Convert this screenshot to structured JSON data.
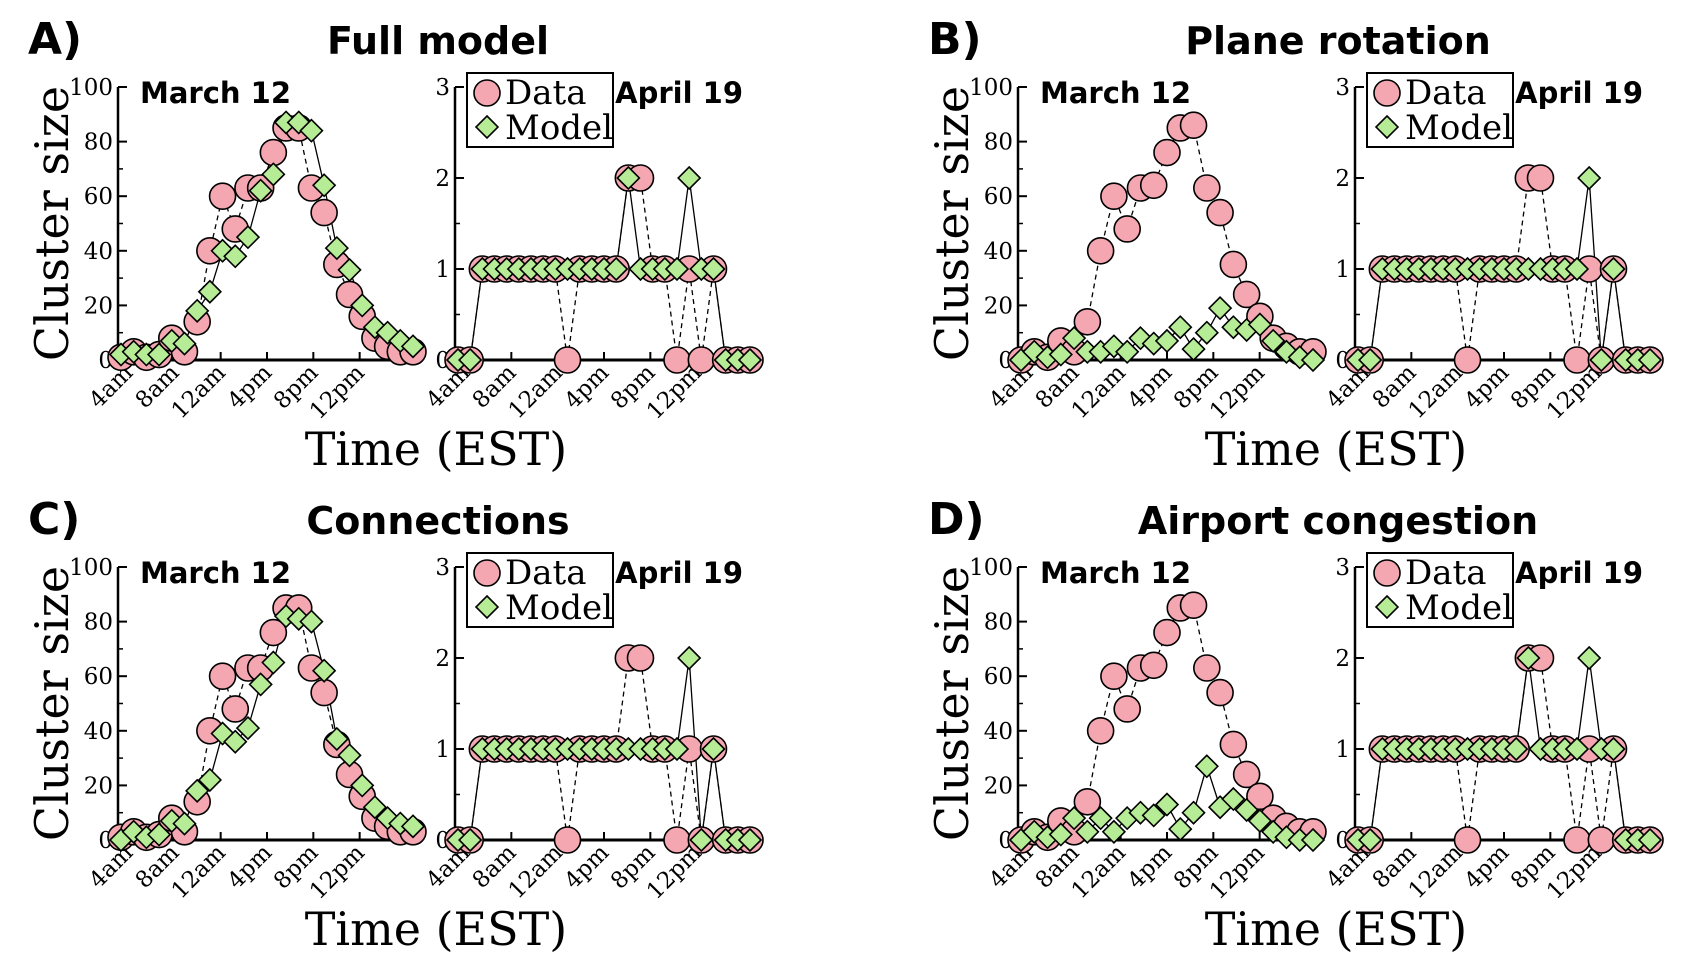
{
  "ylabel": "Cluster size",
  "xlabel": "Time (EST)",
  "legend": {
    "data": "Data",
    "model": "Model"
  },
  "colors": {
    "data_fill": "#f4a7b1",
    "model_fill": "#b6ec96",
    "stroke": "#000000"
  },
  "chart_data": [
    {
      "panel": "A)",
      "title": "Full model",
      "left": {
        "type": "line",
        "date_label": "March 12",
        "xticks": [
          "4am",
          "8am",
          "12am",
          "4pm",
          "8pm",
          "12pm"
        ],
        "ylim": [
          0,
          100
        ],
        "yticks": [
          "0",
          "20",
          "40",
          "60",
          "80",
          "100"
        ],
        "series": [
          {
            "name": "Data",
            "style": "dashed",
            "values": [
              1,
              3,
              1,
              2,
              8,
              3,
              14,
              40,
              60,
              48,
              63,
              63,
              76,
              85,
              85,
              63,
              54,
              35,
              24,
              16,
              8,
              5,
              3,
              3
            ]
          },
          {
            "name": "Model",
            "style": "solid",
            "values": [
              2,
              3,
              2,
              2,
              7,
              6,
              18,
              25,
              40,
              38,
              45,
              62,
              68,
              87,
              87,
              84,
              64,
              41,
              33,
              20,
              12,
              10,
              7,
              5
            ]
          }
        ]
      },
      "right": {
        "type": "line",
        "date_label": "April 19",
        "legend_position": "top-left",
        "xticks": [
          "4am",
          "8am",
          "12am",
          "4pm",
          "8pm",
          "12pm"
        ],
        "ylim": [
          0,
          3
        ],
        "yticks": [
          "0",
          "1",
          "2",
          "3"
        ],
        "series": [
          {
            "name": "Data",
            "style": "dashed",
            "values": [
              0,
              0,
              1,
              1,
              1,
              1,
              1,
              1,
              1,
              0,
              1,
              1,
              1,
              1,
              2,
              2,
              1,
              1,
              0,
              1,
              0,
              1,
              0,
              0,
              0
            ]
          },
          {
            "name": "Model",
            "style": "solid",
            "values": [
              0,
              0,
              1,
              1,
              1,
              1,
              1,
              1,
              1,
              1,
              1,
              1,
              1,
              1,
              2,
              1,
              1,
              1,
              1,
              2,
              1,
              1,
              0,
              0,
              0
            ]
          }
        ]
      }
    },
    {
      "panel": "B)",
      "title": "Plane rotation",
      "left": {
        "type": "line",
        "date_label": "March 12",
        "xticks": [
          "4am",
          "8am",
          "12am",
          "4pm",
          "8pm",
          "12pm"
        ],
        "ylim": [
          0,
          100
        ],
        "yticks": [
          "0",
          "20",
          "40",
          "60",
          "80",
          "100"
        ],
        "series": [
          {
            "name": "Data",
            "style": "dashed",
            "values": [
              0,
              3,
              1,
              7,
              3,
              14,
              40,
              60,
              48,
              63,
              64,
              76,
              85,
              86,
              63,
              54,
              35,
              24,
              16,
              8,
              5,
              3,
              3
            ]
          },
          {
            "name": "Model",
            "style": "solid",
            "values": [
              0,
              3,
              1,
              2,
              8,
              3,
              3,
              5,
              3,
              8,
              6,
              7,
              12,
              4,
              10,
              19,
              12,
              11,
              13,
              7,
              3,
              1,
              0
            ]
          }
        ]
      },
      "right": {
        "type": "line",
        "date_label": "April 19",
        "legend_position": "top-left",
        "xticks": [
          "4am",
          "8am",
          "12am",
          "4pm",
          "8pm",
          "12pm"
        ],
        "ylim": [
          0,
          3
        ],
        "yticks": [
          "0",
          "1",
          "2",
          "3"
        ],
        "series": [
          {
            "name": "Data",
            "style": "dashed",
            "values": [
              0,
              0,
              1,
              1,
              1,
              1,
              1,
              1,
              1,
              0,
              1,
              1,
              1,
              1,
              2,
              2,
              1,
              1,
              0,
              1,
              0,
              1,
              0,
              0,
              0
            ]
          },
          {
            "name": "Model",
            "style": "solid",
            "values": [
              0,
              0,
              1,
              1,
              1,
              1,
              1,
              1,
              1,
              1,
              1,
              1,
              1,
              1,
              1,
              1,
              1,
              1,
              1,
              2,
              0,
              1,
              0,
              0,
              0
            ]
          }
        ]
      }
    },
    {
      "panel": "C)",
      "title": "Connections",
      "left": {
        "type": "line",
        "date_label": "March 12",
        "xticks": [
          "4am",
          "8am",
          "12am",
          "4pm",
          "8pm",
          "12pm"
        ],
        "ylim": [
          0,
          100
        ],
        "yticks": [
          "0",
          "20",
          "40",
          "60",
          "80",
          "100"
        ],
        "series": [
          {
            "name": "Data",
            "style": "dashed",
            "values": [
              1,
              3,
              1,
              2,
              8,
              3,
              14,
              40,
              60,
              48,
              63,
              63,
              76,
              85,
              85,
              63,
              54,
              35,
              24,
              16,
              8,
              5,
              3,
              3
            ]
          },
          {
            "name": "Model",
            "style": "solid",
            "values": [
              0,
              3,
              1,
              2,
              7,
              6,
              18,
              22,
              39,
              36,
              41,
              57,
              65,
              82,
              81,
              80,
              62,
              37,
              31,
              20,
              12,
              8,
              6,
              5
            ]
          }
        ]
      },
      "right": {
        "type": "line",
        "date_label": "April 19",
        "legend_position": "top-left",
        "xticks": [
          "4am",
          "8am",
          "12am",
          "4pm",
          "8pm",
          "12pm"
        ],
        "ylim": [
          0,
          3
        ],
        "yticks": [
          "0",
          "1",
          "2",
          "3"
        ],
        "series": [
          {
            "name": "Data",
            "style": "dashed",
            "values": [
              0,
              0,
              1,
              1,
              1,
              1,
              1,
              1,
              1,
              0,
              1,
              1,
              1,
              1,
              2,
              2,
              1,
              1,
              0,
              1,
              0,
              1,
              0,
              0,
              0
            ]
          },
          {
            "name": "Model",
            "style": "solid",
            "values": [
              0,
              0,
              1,
              1,
              1,
              1,
              1,
              1,
              1,
              1,
              1,
              1,
              1,
              1,
              1,
              1,
              1,
              1,
              1,
              2,
              0,
              1,
              0,
              0,
              0
            ]
          }
        ]
      }
    },
    {
      "panel": "D)",
      "title": "Airport congestion",
      "left": {
        "type": "line",
        "date_label": "March 12",
        "xticks": [
          "4am",
          "8am",
          "12am",
          "4pm",
          "8pm",
          "12pm"
        ],
        "ylim": [
          0,
          100
        ],
        "yticks": [
          "0",
          "20",
          "40",
          "60",
          "80",
          "100"
        ],
        "series": [
          {
            "name": "Data",
            "style": "dashed",
            "values": [
              0,
              3,
              1,
              7,
              3,
              14,
              40,
              60,
              48,
              63,
              64,
              76,
              85,
              86,
              63,
              54,
              35,
              24,
              16,
              8,
              5,
              3,
              3
            ]
          },
          {
            "name": "Model",
            "style": "solid",
            "values": [
              0,
              3,
              1,
              2,
              8,
              3,
              8,
              3,
              8,
              10,
              9,
              13,
              4,
              10,
              27,
              12,
              15,
              11,
              7,
              3,
              1,
              0,
              0
            ]
          }
        ]
      },
      "right": {
        "type": "line",
        "date_label": "April 19",
        "legend_position": "top-left",
        "xticks": [
          "4am",
          "8am",
          "12am",
          "4pm",
          "8pm",
          "12pm"
        ],
        "ylim": [
          0,
          3
        ],
        "yticks": [
          "0",
          "1",
          "2",
          "3"
        ],
        "series": [
          {
            "name": "Data",
            "style": "dashed",
            "values": [
              0,
              0,
              1,
              1,
              1,
              1,
              1,
              1,
              1,
              0,
              1,
              1,
              1,
              1,
              2,
              2,
              1,
              1,
              0,
              1,
              0,
              1,
              0,
              0,
              0
            ]
          },
          {
            "name": "Model",
            "style": "solid",
            "values": [
              0,
              0,
              1,
              1,
              1,
              1,
              1,
              1,
              1,
              1,
              1,
              1,
              1,
              1,
              2,
              1,
              1,
              1,
              1,
              2,
              1,
              1,
              0,
              0,
              0
            ]
          }
        ]
      }
    }
  ]
}
